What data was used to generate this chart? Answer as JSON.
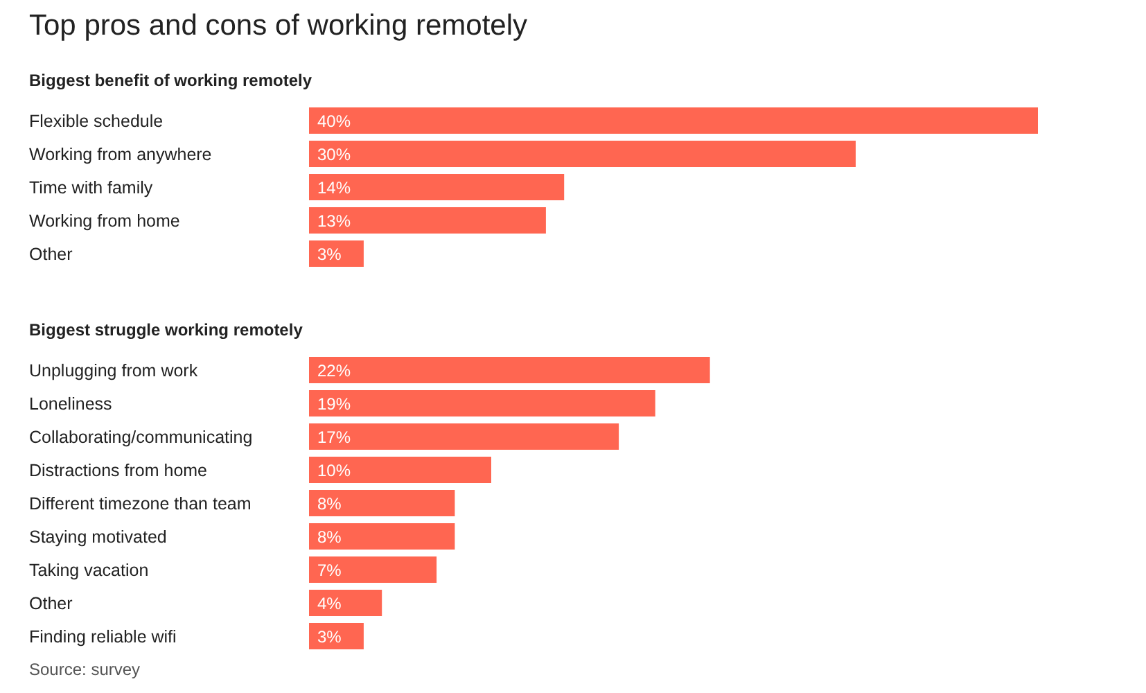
{
  "chart_data": [
    {
      "type": "bar",
      "orientation": "horizontal",
      "title": "Top pros and cons of working remotely",
      "subtitle": "Biggest benefit of working remotely",
      "categories": [
        "Flexible schedule",
        "Working from anywhere",
        "Time with family",
        "Working from home",
        "Other"
      ],
      "values": [
        40,
        30,
        14,
        13,
        3
      ],
      "value_labels": [
        "40%",
        "30%",
        "14%",
        "13%",
        "3%"
      ],
      "color": "#ff6651"
    },
    {
      "type": "bar",
      "orientation": "horizontal",
      "subtitle": "Biggest struggle working remotely",
      "categories": [
        "Unplugging from work",
        "Loneliness",
        "Collaborating/communicating",
        "Distractions from home",
        "Different timezone than team",
        "Staying motivated",
        "Taking vacation",
        "Other",
        "Finding reliable wifi"
      ],
      "values": [
        22,
        19,
        17,
        10,
        8,
        8,
        7,
        4,
        3
      ],
      "value_labels": [
        "22%",
        "19%",
        "17%",
        "10%",
        "8%",
        "8%",
        "7%",
        "4%",
        "3%"
      ],
      "color": "#ff6651",
      "annotations": [
        "Source: survey"
      ]
    }
  ]
}
